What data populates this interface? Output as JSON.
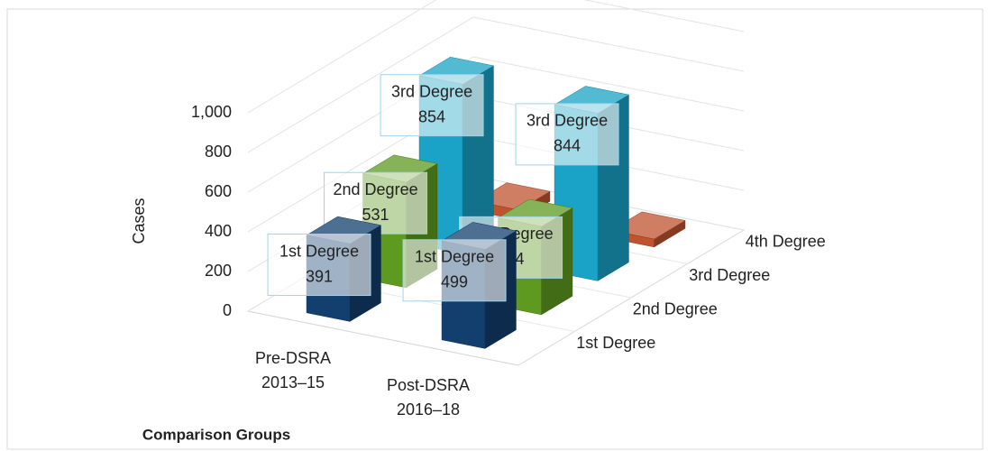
{
  "chart_data": {
    "type": "bar3d",
    "y_axis_label": "Cases",
    "x_axis_label": "Comparison Groups",
    "categories": [
      [
        "Pre-DSRA",
        "2013–15"
      ],
      [
        "Post-DSRA",
        "2016–18"
      ]
    ],
    "series": [
      {
        "name": "1st Degree",
        "color": "#123f6e",
        "values": [
          391,
          499
        ],
        "show_labels": true
      },
      {
        "name": "2nd Degree",
        "color": "#5e9a1f",
        "values": [
          531,
          444
        ],
        "show_labels": true
      },
      {
        "name": "3rd Degree",
        "color": "#1aa3c6",
        "values": [
          854,
          844
        ],
        "show_labels": true
      },
      {
        "name": "4th Degree",
        "color": "#c0532f",
        "values": [
          50,
          40
        ],
        "show_labels": false
      }
    ],
    "ylim": [
      0,
      1000
    ],
    "yticks": [
      0,
      200,
      400,
      600,
      800,
      {
        "value": 1000,
        "label": "1,000"
      }
    ],
    "grid": true
  }
}
